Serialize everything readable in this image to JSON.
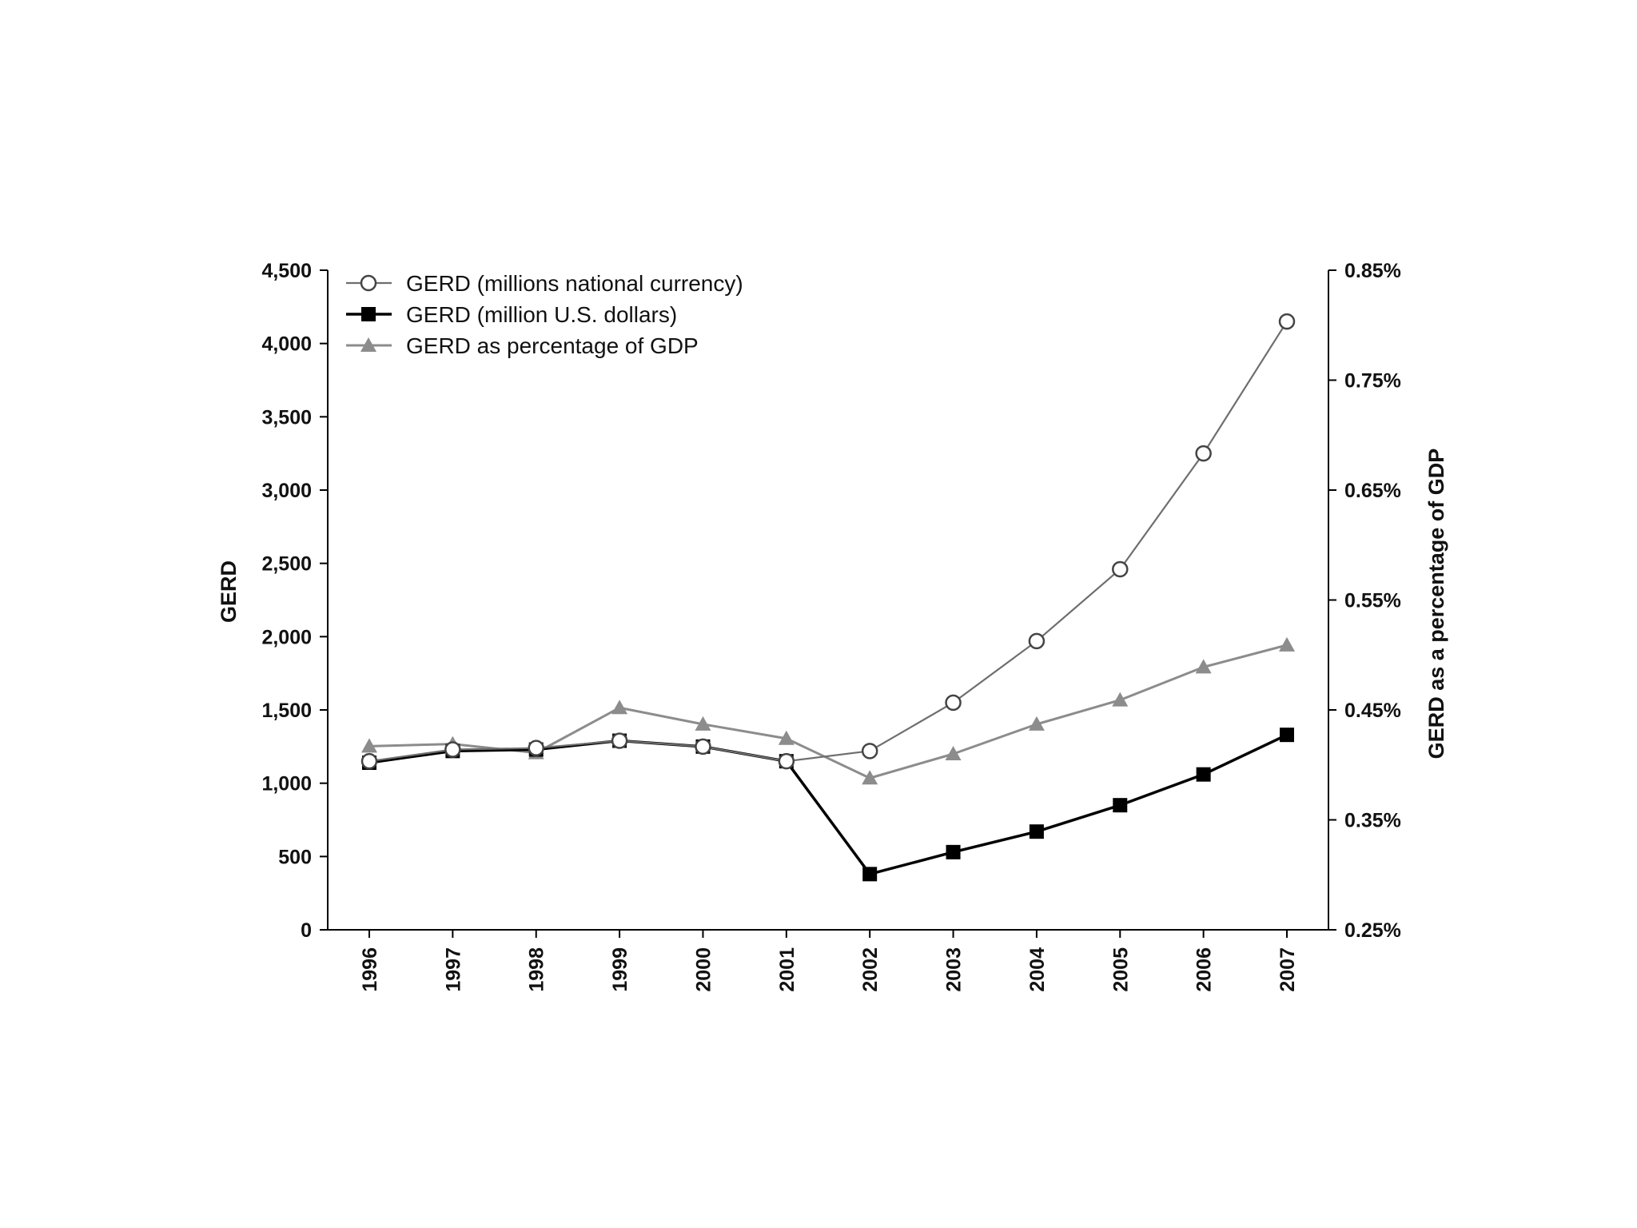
{
  "chart_data": {
    "type": "line",
    "title": "",
    "x": [
      "1996",
      "1997",
      "1998",
      "1999",
      "2000",
      "2001",
      "2002",
      "2003",
      "2004",
      "2005",
      "2006",
      "2007"
    ],
    "xlabel": "",
    "ylabel": "GERD",
    "ylabel_right": "GERD as a percentage of GDP",
    "ylim": [
      0,
      4500
    ],
    "ylim_right": [
      0.25,
      0.85
    ],
    "yticks": [
      "0",
      "500",
      "1,000",
      "1,500",
      "2,000",
      "2,500",
      "3,000",
      "3,500",
      "4,000",
      "4,500"
    ],
    "yticks_right": [
      "0.25%",
      "0.35%",
      "0.45%",
      "0.55%",
      "0.65%",
      "0.75%",
      "0.85%"
    ],
    "legend_position": "top-left",
    "grid": false,
    "series": [
      {
        "name": "GERD (millions national currency)",
        "axis": "left",
        "marker": "open-circle",
        "color": "#6e6e6e",
        "values": [
          1150,
          1230,
          1240,
          1290,
          1250,
          1150,
          1220,
          1550,
          1970,
          2460,
          3250,
          4150
        ]
      },
      {
        "name": "GERD (million U.S. dollars)",
        "axis": "left",
        "marker": "filled-square",
        "color": "#000000",
        "values": [
          1140,
          1220,
          1230,
          1290,
          1250,
          1150,
          380,
          530,
          670,
          850,
          1060,
          1330
        ]
      },
      {
        "name": "GERD as percentage of GDP",
        "axis": "right",
        "marker": "filled-triangle",
        "color": "#8c8c8c",
        "values": [
          0.417,
          0.419,
          0.411,
          0.452,
          0.437,
          0.424,
          0.388,
          0.41,
          0.437,
          0.459,
          0.489,
          0.509
        ]
      }
    ]
  }
}
